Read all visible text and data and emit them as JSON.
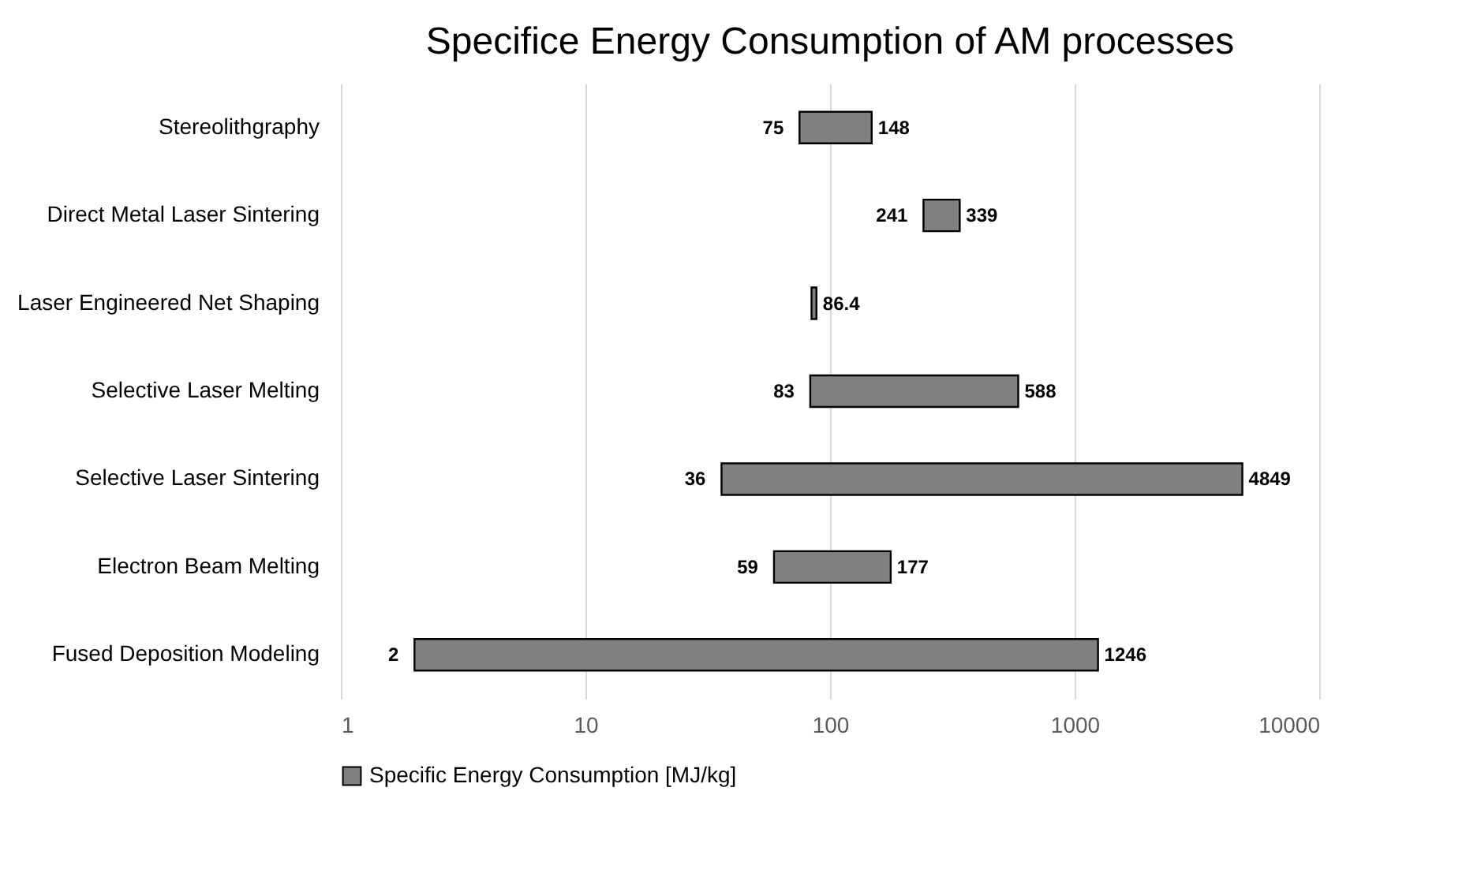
{
  "chart_data": {
    "type": "bar",
    "orientation": "horizontal",
    "title": "Specifice Energy Consumption of AM processes",
    "categories": [
      "Stereolithgraphy",
      "Direct Metal Laser Sintering",
      "Laser Engineered Net Shaping",
      "Selective Laser Melting",
      "Selective Laser Sintering",
      "Electron Beam Melting",
      "Fused Deposition Modeling"
    ],
    "series": [
      {
        "name": "Specific Energy Consumption [MJ/kg]",
        "color": "#808080",
        "base": [
          75,
          241,
          84,
          83,
          36,
          59,
          2
        ],
        "values": [
          73,
          98,
          4,
          505,
          4813,
          118,
          1244
        ]
      }
    ],
    "xlim": [
      1,
      10000
    ],
    "xticks": [
      1,
      10,
      100,
      {
        "value": 1000,
        "label": "1000"
      },
      {
        "value": 10000,
        "label": "10000"
      }
    ],
    "log": "x",
    "grid": "x",
    "legend": "bottom",
    "annotations": [
      {
        "text": "75",
        "x": 75,
        "y": "Stereolithgraphy"
      },
      {
        "text": "148",
        "x": 148,
        "y": "Stereolithgraphy"
      },
      {
        "text": "241",
        "x": 241,
        "y": "Direct Metal Laser Sintering"
      },
      {
        "text": "339",
        "x": 339,
        "y": "Direct Metal Laser Sintering"
      },
      {
        "text": "86.4",
        "x": 88,
        "y": "Laser Engineered Net Shaping"
      },
      {
        "text": "83",
        "x": 83,
        "y": "Selective Laser Melting"
      },
      {
        "text": "588",
        "x": 588,
        "y": "Selective Laser Melting"
      },
      {
        "text": "36",
        "x": 36,
        "y": "Selective Laser Sintering"
      },
      {
        "text": "4849",
        "x": 4849,
        "y": "Selective Laser Sintering"
      },
      {
        "text": "59",
        "x": 59,
        "y": "Electron Beam Melting"
      },
      {
        "text": "177",
        "x": 177,
        "y": "Electron Beam Melting"
      },
      {
        "text": "2",
        "x": 2,
        "y": "Fused Deposition Modeling"
      },
      {
        "text": "1246",
        "x": 1246,
        "y": "Fused Deposition Modeling"
      }
    ]
  }
}
